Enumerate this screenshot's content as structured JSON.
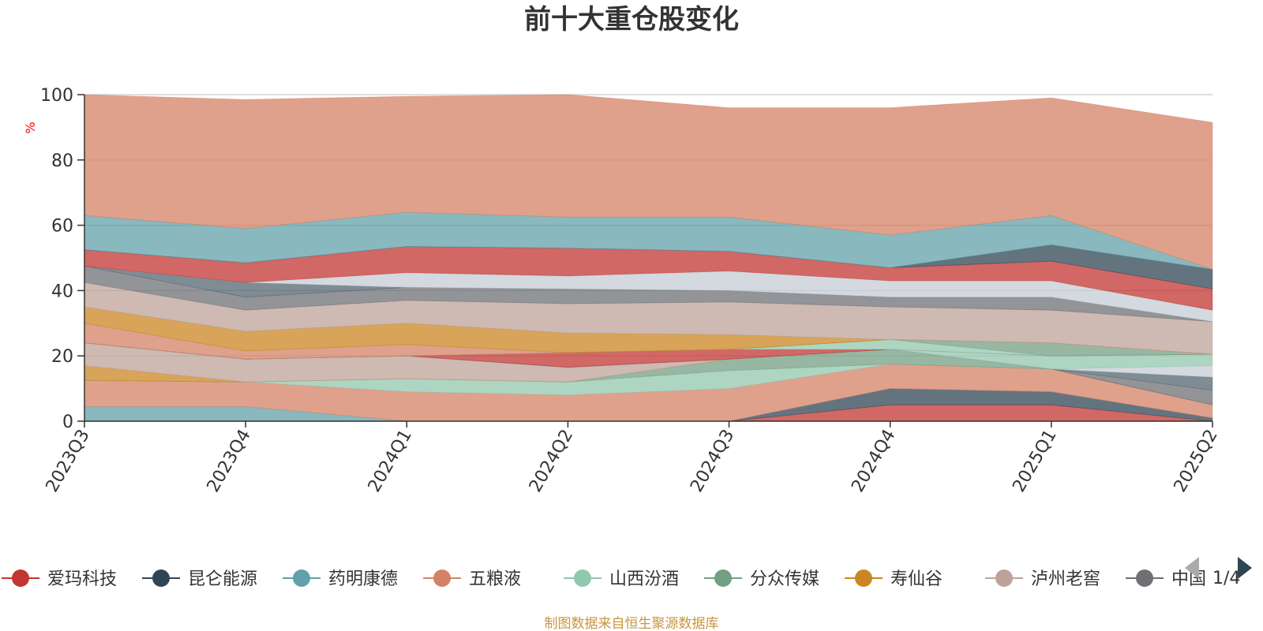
{
  "chart_data": {
    "type": "area",
    "title": "前十大重仓股变化",
    "ylabel": "%",
    "ylim": [
      0,
      100
    ],
    "yticks": [
      0,
      20,
      40,
      60,
      80,
      100
    ],
    "grid": true,
    "categories": [
      "2023Q3",
      "2023Q4",
      "2024Q1",
      "2024Q2",
      "2024Q3",
      "2024Q4",
      "2025Q1",
      "2025Q2"
    ],
    "series": [
      {
        "name": "爱玛科技",
        "color": "#c23531",
        "values": [
          0,
          0,
          0,
          0,
          0,
          5,
          5,
          0
        ]
      },
      {
        "name": "昆仑能源",
        "color": "#2f4554",
        "values": [
          0,
          0,
          0,
          0,
          0,
          5,
          4,
          1
        ]
      },
      {
        "name": "药明康德",
        "color": "#61a0a8",
        "values": [
          4.5,
          4.5,
          0,
          0,
          0,
          0,
          0,
          0
        ]
      },
      {
        "name": "五粮液",
        "color": "#d48265",
        "values": [
          8,
          7.5,
          9,
          8,
          10,
          7.5,
          7,
          4
        ]
      },
      {
        "name": "山西汾酒",
        "color": "#91c7ae",
        "values": [
          0,
          0,
          4,
          4,
          5.5,
          0,
          0,
          0
        ]
      },
      {
        "name": "分众传媒",
        "color": "#749f83",
        "values": [
          0,
          0,
          0,
          0,
          3.5,
          4.5,
          0,
          0
        ]
      },
      {
        "name": "寿仙谷",
        "color": "#ca8622",
        "values": [
          4.5,
          0,
          0,
          0,
          0,
          0,
          0,
          0
        ]
      },
      {
        "name": "泸州老窖",
        "color": "#bda29a",
        "values": [
          7,
          7,
          7,
          4.5,
          0,
          0,
          0,
          0
        ]
      },
      {
        "name": "中国",
        "color": "#6e7074",
        "values": [
          0,
          0,
          0,
          0,
          0,
          0,
          0,
          4.5
        ]
      },
      {
        "name": "",
        "color": "#546570",
        "values": [
          0,
          0,
          0,
          0,
          0,
          0,
          0,
          4
        ]
      },
      {
        "name": "",
        "color": "#c4ccd3",
        "values": [
          0,
          0,
          0,
          0,
          0,
          0,
          0,
          3.5
        ]
      },
      {
        "name": "",
        "color": "#91c7ae",
        "values": [
          0,
          0,
          0,
          0,
          0,
          0,
          4,
          3.5
        ]
      },
      {
        "name": "",
        "color": "#c23531",
        "values": [
          0,
          0,
          0,
          4.5,
          3,
          0,
          0,
          0
        ]
      },
      {
        "name": "",
        "color": "#91c7ae",
        "values": [
          0,
          0,
          0,
          0,
          0,
          3,
          0,
          0
        ]
      },
      {
        "name": "",
        "color": "#749f83",
        "values": [
          0,
          0,
          0,
          0,
          0,
          0,
          4,
          0
        ]
      },
      {
        "name": "",
        "color": "#d48265",
        "values": [
          6,
          2.5,
          3.5,
          0,
          0,
          0,
          0,
          0
        ]
      },
      {
        "name": "",
        "color": "#ca8622",
        "values": [
          5,
          6,
          6.5,
          6,
          4.5,
          0,
          0,
          0
        ]
      },
      {
        "name": "",
        "color": "#bda29a",
        "values": [
          7.5,
          6.5,
          7,
          9,
          10,
          10,
          10,
          10
        ]
      },
      {
        "name": "",
        "color": "#6e7074",
        "values": [
          5,
          4,
          4,
          4.5,
          3.5,
          3,
          4,
          0
        ]
      },
      {
        "name": "",
        "color": "#546570",
        "values": [
          0,
          4.5,
          0,
          0,
          0,
          0,
          0,
          0
        ]
      },
      {
        "name": "",
        "color": "#c4ccd3",
        "values": [
          0,
          0,
          4.5,
          4,
          6,
          5,
          5,
          3.5
        ]
      },
      {
        "name": "",
        "color": "#c23531",
        "values": [
          5,
          6,
          8,
          8.5,
          6,
          4,
          6,
          6.5
        ]
      },
      {
        "name": "",
        "color": "#2f4554",
        "values": [
          0,
          0,
          0,
          0,
          0,
          0,
          5,
          6
        ]
      },
      {
        "name": "",
        "color": "#61a0a8",
        "values": [
          10.5,
          10.5,
          10.5,
          9.5,
          10.5,
          10,
          9,
          0
        ]
      },
      {
        "name": "",
        "color": "#d48265",
        "values": [
          37,
          39.5,
          35.5,
          37.5,
          33.5,
          39,
          36,
          45
        ]
      }
    ]
  },
  "legend": {
    "items": [
      {
        "name": "爱玛科技",
        "color": "#c23531"
      },
      {
        "name": "昆仑能源",
        "color": "#2f4554"
      },
      {
        "name": "药明康德",
        "color": "#61a0a8"
      },
      {
        "name": "五粮液",
        "color": "#d48265"
      },
      {
        "name": "山西汾酒",
        "color": "#91c7ae"
      },
      {
        "name": "分众传媒",
        "color": "#749f83"
      },
      {
        "name": "寿仙谷",
        "color": "#ca8622"
      },
      {
        "name": "泸州老窖",
        "color": "#bda29a"
      },
      {
        "name": "中国",
        "color": "#6e7074"
      }
    ],
    "page": "1/4",
    "prev_icon": "triangle-left-icon",
    "next_icon": "triangle-right-icon"
  },
  "source_note": "制图数据来自恒生聚源数据库",
  "colors": {
    "title": "#333333",
    "axis": "#333333",
    "grid": "#cccccc",
    "unit": "#ff0000",
    "source": "#c8963e",
    "pager_disabled": "#aaaaaa",
    "pager_active": "#2f4554"
  }
}
